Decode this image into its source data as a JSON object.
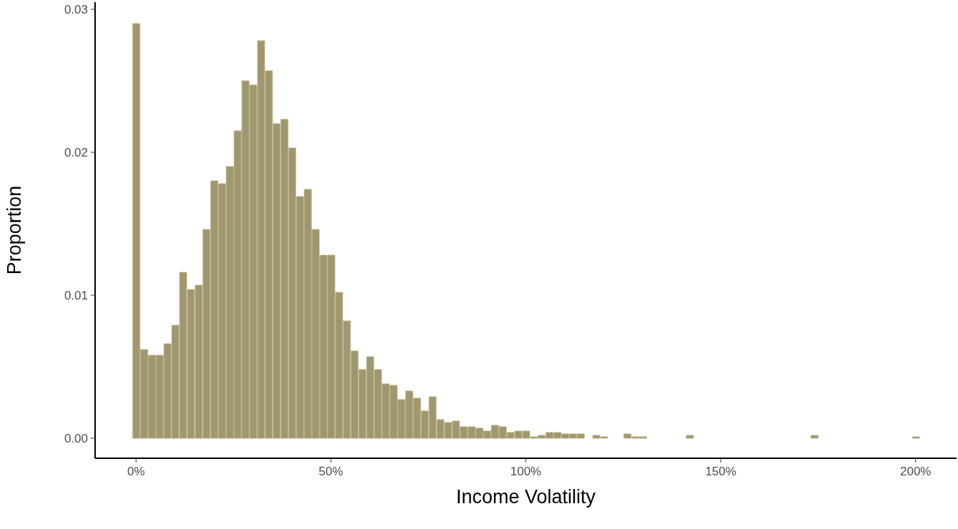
{
  "chart_data": {
    "type": "histogram",
    "xlabel": "Income Volatility",
    "ylabel": "Proportion",
    "bins": [
      -1,
      1,
      3,
      5,
      7,
      9,
      11,
      13,
      15,
      17,
      19,
      21,
      23,
      25,
      27,
      29,
      31,
      33,
      35,
      37,
      39,
      41,
      43,
      45,
      47,
      49,
      51,
      53,
      55,
      57,
      59,
      61,
      63,
      65,
      67,
      69,
      71,
      73,
      75,
      77,
      79,
      81,
      83,
      85,
      87,
      89,
      91,
      93,
      95,
      97,
      99,
      101,
      103,
      105,
      107,
      109,
      111,
      113,
      115,
      117,
      119,
      121,
      123,
      125,
      127,
      129,
      131,
      133,
      135,
      137,
      139,
      141,
      143,
      145,
      147,
      149,
      151,
      153,
      155,
      157,
      159,
      161,
      163,
      165,
      167,
      169,
      171,
      173,
      175,
      177,
      179,
      181,
      183,
      185,
      187,
      189,
      191,
      193,
      195,
      197,
      199,
      201
    ],
    "values": [
      0.029,
      0.0062,
      0.0058,
      0.0058,
      0.0066,
      0.0079,
      0.0116,
      0.0104,
      0.0107,
      0.0146,
      0.018,
      0.0178,
      0.019,
      0.0215,
      0.025,
      0.0247,
      0.0278,
      0.0257,
      0.022,
      0.0223,
      0.0203,
      0.0169,
      0.0174,
      0.0146,
      0.0128,
      0.0128,
      0.0102,
      0.0082,
      0.0061,
      0.0048,
      0.0057,
      0.0048,
      0.0038,
      0.0037,
      0.0027,
      0.0033,
      0.0028,
      0.0019,
      0.0029,
      0.0013,
      0.0011,
      0.0012,
      0.0008,
      0.0008,
      0.0007,
      0.0005,
      0.0009,
      0.0008,
      0.0004,
      0.0005,
      0.0005,
      0.0001,
      0.0002,
      0.0004,
      0.0004,
      0.0003,
      0.0003,
      0.0003,
      0,
      0.0002,
      0.0001,
      0,
      0,
      0.0003,
      0.0001,
      0.0001,
      0,
      0,
      0,
      0,
      0,
      0.0002,
      0,
      0,
      0,
      0,
      0,
      0,
      0,
      0,
      0,
      0,
      0,
      0,
      0,
      0,
      0,
      0.0002,
      0,
      0,
      0,
      0,
      0,
      0,
      0,
      0,
      0,
      0,
      0,
      0,
      0.0001
    ],
    "color": "#9f976f",
    "xlim": [
      -10.5,
      210.5
    ],
    "xticks": [
      {
        "value": 0,
        "label": "0%"
      },
      {
        "value": 50,
        "label": "50%"
      },
      {
        "value": 100,
        "label": "100%"
      },
      {
        "value": 150,
        "label": "150%"
      },
      {
        "value": 200,
        "label": "200%"
      }
    ],
    "ylim": [
      -0.0014,
      0.0305
    ],
    "yticks": [
      {
        "value": 0,
        "label": "0.00"
      },
      {
        "value": 0.01,
        "label": "0.01"
      },
      {
        "value": 0.02,
        "label": "0.02"
      },
      {
        "value": 0.03,
        "label": "0.03"
      }
    ]
  }
}
